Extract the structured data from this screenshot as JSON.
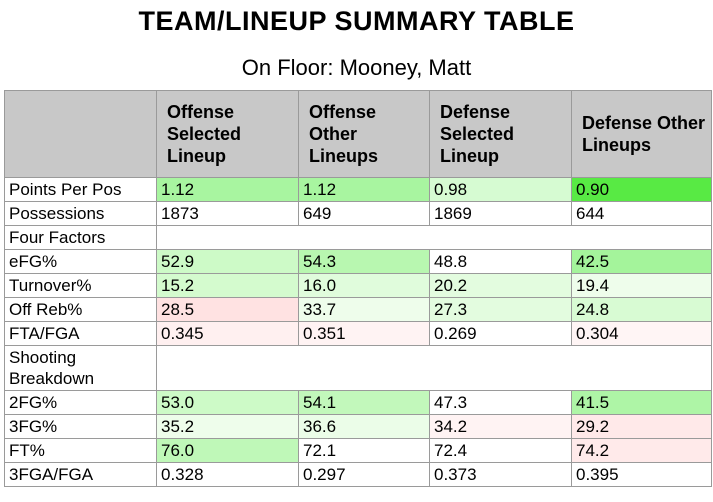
{
  "title": "TEAM/LINEUP SUMMARY TABLE",
  "subtitle": "On Floor: Mooney, Matt",
  "headers": [
    "",
    "Offense Selected Lineup",
    "Offense Other Lineups",
    "Defense Selected Lineup",
    "Defense Other Lineups"
  ],
  "rows": [
    {
      "label": "Points Per Pos",
      "cells": [
        {
          "v": "1.12",
          "bg": "#a8f5a0"
        },
        {
          "v": "1.12",
          "bg": "#a8f5a0"
        },
        {
          "v": "0.98",
          "bg": "#d6fbd2"
        },
        {
          "v": "0.90",
          "bg": "#58ea44"
        }
      ]
    },
    {
      "label": "Possessions",
      "cells": [
        {
          "v": "1873",
          "bg": "#ffffff"
        },
        {
          "v": "649",
          "bg": "#ffffff"
        },
        {
          "v": "1869",
          "bg": "#ffffff"
        },
        {
          "v": "644",
          "bg": "#ffffff"
        }
      ]
    },
    {
      "label": "Four Factors",
      "section": true,
      "cells": []
    },
    {
      "label": "eFG%",
      "cells": [
        {
          "v": "52.9",
          "bg": "#cdfac7"
        },
        {
          "v": "54.3",
          "bg": "#b8f7b0"
        },
        {
          "v": "48.8",
          "bg": "#ffffff"
        },
        {
          "v": "42.5",
          "bg": "#a4f49b"
        }
      ]
    },
    {
      "label": "Turnover%",
      "cells": [
        {
          "v": "15.2",
          "bg": "#d4fbce"
        },
        {
          "v": "16.0",
          "bg": "#e0fcdc"
        },
        {
          "v": "20.2",
          "bg": "#e3fcdf"
        },
        {
          "v": "19.4",
          "bg": "#eefdeb"
        }
      ]
    },
    {
      "label": "Off Reb%",
      "cells": [
        {
          "v": "28.5",
          "bg": "#ffe2e2"
        },
        {
          "v": "33.7",
          "bg": "#eefdeb"
        },
        {
          "v": "27.3",
          "bg": "#e3fcdf"
        },
        {
          "v": "24.8",
          "bg": "#d8fbd3"
        }
      ]
    },
    {
      "label": "FTA/FGA",
      "cells": [
        {
          "v": "0.345",
          "bg": "#fff0f0"
        },
        {
          "v": "0.351",
          "bg": "#fff3f3"
        },
        {
          "v": "0.269",
          "bg": "#ffffff"
        },
        {
          "v": "0.304",
          "bg": "#fff5f5"
        }
      ]
    },
    {
      "label": "Shooting Breakdown",
      "section": true,
      "tall": true,
      "cells": []
    },
    {
      "label": "2FG%",
      "cells": [
        {
          "v": "53.0",
          "bg": "#cdfac7"
        },
        {
          "v": "54.1",
          "bg": "#c2f8bb"
        },
        {
          "v": "47.3",
          "bg": "#ffffff"
        },
        {
          "v": "41.5",
          "bg": "#aef5a6"
        }
      ]
    },
    {
      "label": "3FG%",
      "cells": [
        {
          "v": "35.2",
          "bg": "#eefdeb"
        },
        {
          "v": "36.6",
          "bg": "#ebfde8"
        },
        {
          "v": "34.2",
          "bg": "#fff3f3"
        },
        {
          "v": "29.2",
          "bg": "#ffe9e9"
        }
      ]
    },
    {
      "label": "FT%",
      "cells": [
        {
          "v": "76.0",
          "bg": "#bff8b8"
        },
        {
          "v": "72.1",
          "bg": "#ffffff"
        },
        {
          "v": "72.4",
          "bg": "#ffffff"
        },
        {
          "v": "74.2",
          "bg": "#ffeaea"
        }
      ]
    },
    {
      "label": "3FGA/FGA",
      "cells": [
        {
          "v": "0.328",
          "bg": "#ffffff"
        },
        {
          "v": "0.297",
          "bg": "#ffffff"
        },
        {
          "v": "0.373",
          "bg": "#ffffff"
        },
        {
          "v": "0.395",
          "bg": "#ffffff"
        }
      ]
    }
  ]
}
